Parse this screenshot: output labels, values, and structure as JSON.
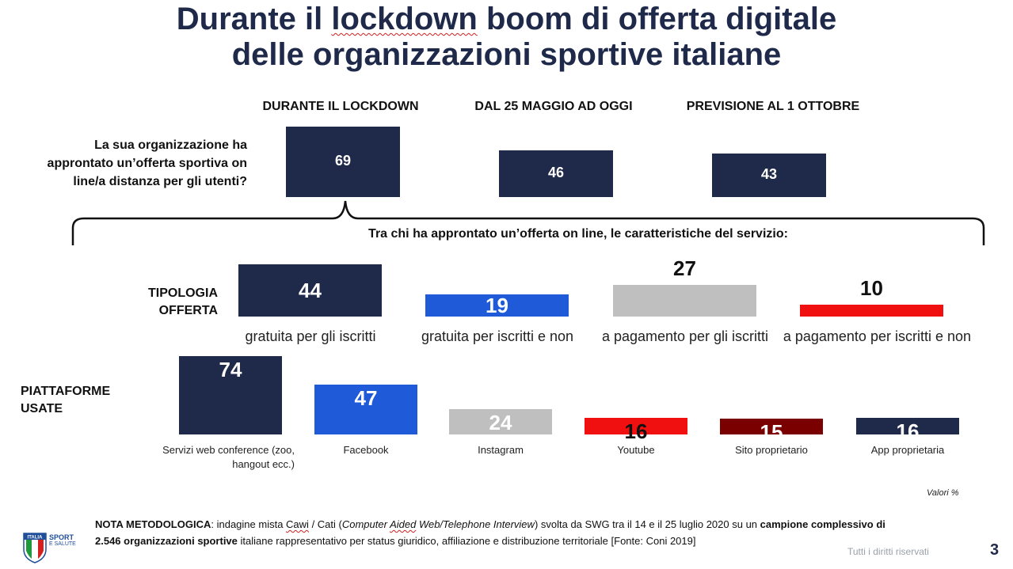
{
  "title": {
    "line1_word1": "Durante il ",
    "line1_word2": "lockdown",
    "line1_rest": " boom di offerta digitale",
    "line2": "delle organizzazioni sportive italiane"
  },
  "question": "La sua organizzazione ha approntato un’offerta sportiva on line/a distanza per gli utenti?",
  "subtitle": "Tra chi ha approntato un’offerta on line, le caratteristiche del servizio:",
  "row_labels": {
    "tipologia_line1": "TIPOLOGIA",
    "tipologia_line2": "OFFERTA",
    "piattaforme_line1": "PIATTAFORME",
    "piattaforme_line2": "USATE"
  },
  "chart_data": [
    {
      "type": "bar",
      "categories": [
        "DURANTE IL LOCKDOWN",
        "DAL 25 MAGGIO AD OGGI",
        "PREVISIONE AL 1 OTTOBRE"
      ],
      "values": [
        69,
        46,
        43
      ],
      "colors": [
        "#1f2a4a",
        "#1f2a4a",
        "#1f2a4a"
      ],
      "unit": "%"
    },
    {
      "type": "bar",
      "categories": [
        "gratuita per gli iscritti",
        "gratuita per iscritti e non",
        "a pagamento per gli iscritti",
        "a pagamento per iscritti e non"
      ],
      "values": [
        44,
        19,
        27,
        10
      ],
      "colors": [
        "#1f2a4a",
        "#1f5ad8",
        "#bfbfbf",
        "#f01010"
      ],
      "label_colors": [
        "#ffffff",
        "#ffffff",
        "#111111",
        "#111111"
      ],
      "unit": "%"
    },
    {
      "type": "bar",
      "categories": [
        "Servizi web conference (zoo, hangout ecc.)",
        "Facebook",
        "Instagram",
        "Youtube",
        "Sito proprietario",
        "App proprietaria"
      ],
      "values": [
        74,
        47,
        24,
        16,
        15,
        16
      ],
      "colors": [
        "#1f2a4a",
        "#1f5ad8",
        "#bfbfbf",
        "#f01010",
        "#7a0000",
        "#1f2a4a"
      ],
      "label_colors": [
        "#ffffff",
        "#ffffff",
        "#ffffff",
        "#111111",
        "#ffffff",
        "#ffffff"
      ],
      "unit": "%"
    }
  ],
  "valori": "Valori %",
  "note": {
    "bold_lead": "NOTA METODOLOGICA",
    "text1": ": indagine mista ",
    "cawi": "Cawi",
    "text2": " / Cati (",
    "ital1": "Computer ",
    "aided": "Aided",
    "ital2": " Web/Telephone Interview",
    "text3": ") svolta da SWG tra il 14 e il 25 luglio 2020 su un ",
    "bold2": "campione complessivo di 2.546 organizzazioni sportive",
    "text4": " italiane rappresentativo per status giuridico, affiliazione e distribuzione territoriale [Fonte: Coni 2019]"
  },
  "logo": {
    "line1": "SPORT",
    "line2": "E SALUTE",
    "flag_text": "ITALIA"
  },
  "rights": "Tutti i diritti riservati",
  "page_number": "3"
}
